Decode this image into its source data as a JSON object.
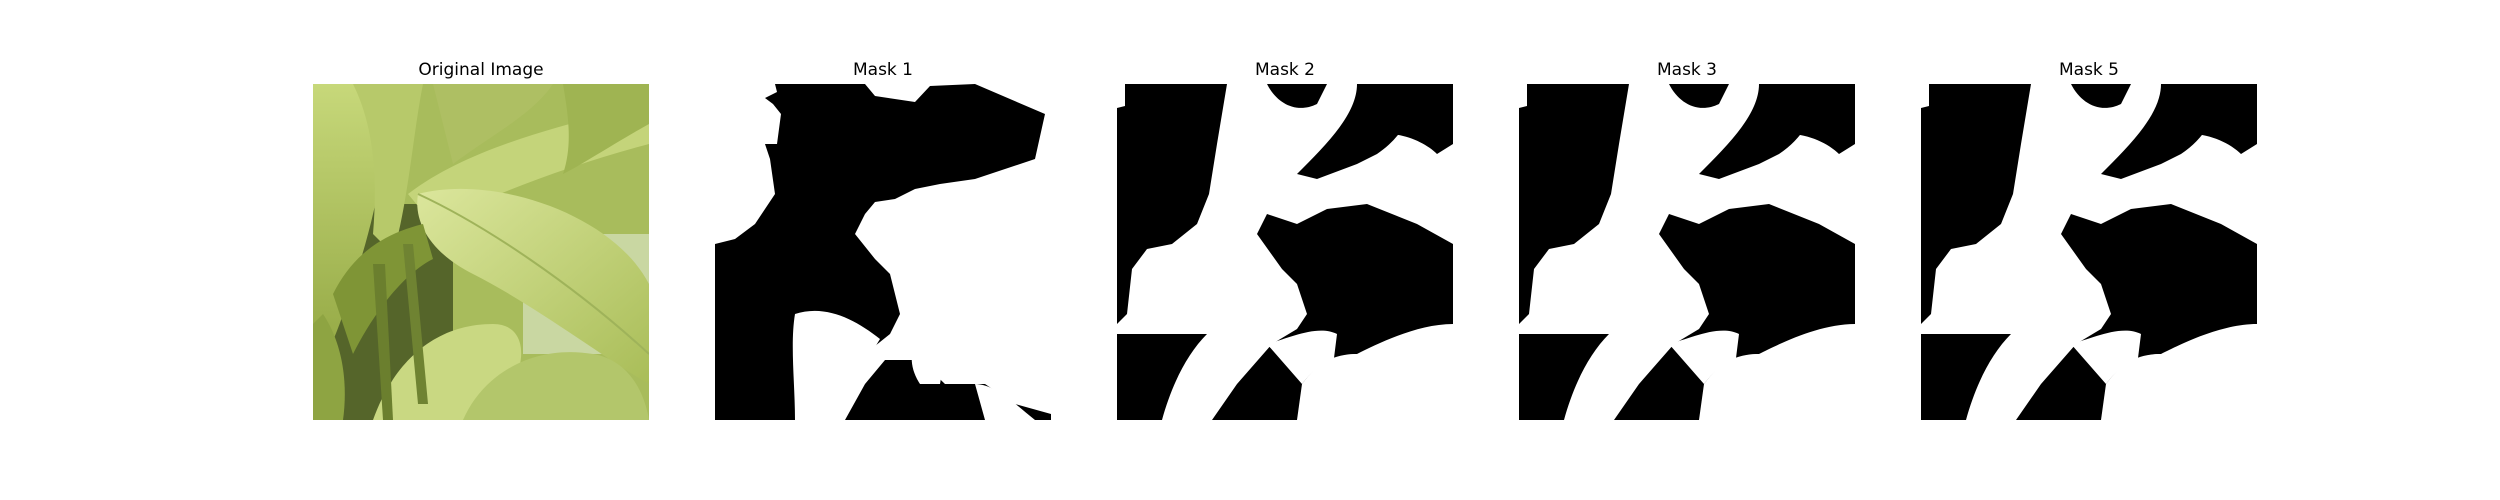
{
  "figure": {
    "panels": [
      {
        "title": "Original Image",
        "kind": "photo"
      },
      {
        "title": "Mask 1",
        "kind": "mask"
      },
      {
        "title": "Mask 2",
        "kind": "mask"
      },
      {
        "title": "Mask 3",
        "kind": "mask"
      },
      {
        "title": "Mask 5",
        "kind": "mask"
      }
    ]
  },
  "colors": {
    "background": "#ffffff",
    "mask_foreground": "#ffffff",
    "mask_background": "#000000",
    "leaf_light": "#d2df92",
    "leaf_mid": "#b7c96a",
    "leaf_dark": "#7f9536",
    "shadow": "#3f4c1d"
  }
}
